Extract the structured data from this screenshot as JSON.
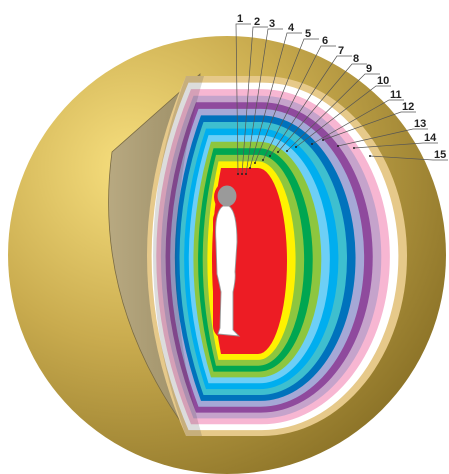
{
  "diagram": {
    "colors": {
      "sphere_light": "#f7df7e",
      "sphere_mid": "#c9ab4e",
      "sphere_dark": "#8d7428",
      "cut_face": "#a8996e",
      "leader_line": "#555555"
    },
    "layers": [
      {
        "number": "1",
        "color": "#ed1c24"
      },
      {
        "number": "2",
        "color": "#fff200"
      },
      {
        "number": "3",
        "color": "#8dc63f"
      },
      {
        "number": "4",
        "color": "#00a651"
      },
      {
        "number": "5",
        "color": "#8dc63f"
      },
      {
        "number": "6",
        "color": "#6dcff6"
      },
      {
        "number": "7",
        "color": "#00aeef"
      },
      {
        "number": "8",
        "color": "#3ebfcf"
      },
      {
        "number": "9",
        "color": "#0072bc"
      },
      {
        "number": "10",
        "color": "#a5a8d6"
      },
      {
        "number": "11",
        "color": "#8f4a9d"
      },
      {
        "number": "12",
        "color": "#c5a3cb"
      },
      {
        "number": "13",
        "color": "#f7b6d2"
      },
      {
        "number": "14",
        "color": "#ffffff"
      },
      {
        "number": "15",
        "color": "#e6c98a"
      }
    ]
  }
}
